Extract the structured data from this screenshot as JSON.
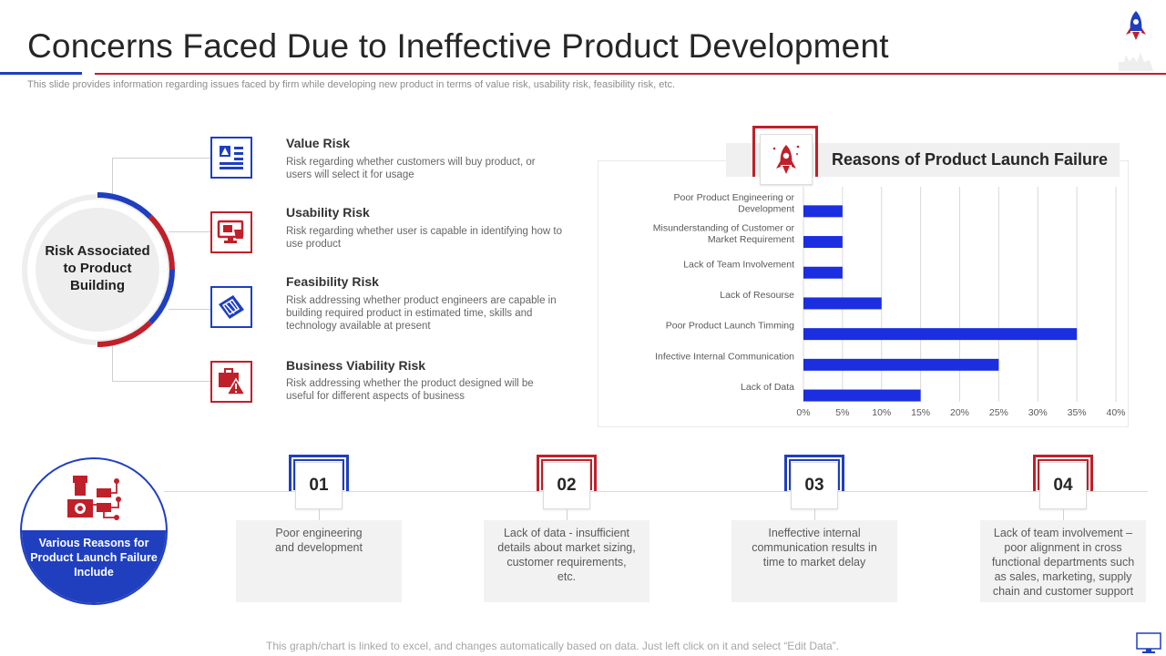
{
  "page": {
    "title": "Concerns Faced Due to Ineffective Product Development",
    "subtitle": "This slide provides information regarding issues faced by firm while developing new product in terms of value risk, usability risk, feasibility risk, etc.",
    "footnote": "This graph/chart is linked to excel, and changes automatically based on data. Just left click on it and select “Edit Data”."
  },
  "colors": {
    "blue": "#1f3fbf",
    "red": "#c0202a",
    "bar": "#1b2ee0"
  },
  "risk_center": {
    "label": "Risk Associated to Product Building"
  },
  "risks": [
    {
      "title": "Value Risk",
      "desc": "Risk regarding whether customers will buy product, or users will select it for usage",
      "icon": "document-chart-icon"
    },
    {
      "title": "Usability Risk",
      "desc": "Risk regarding whether user is capable in identifying how to use product",
      "icon": "computer-hand-icon"
    },
    {
      "title": "Feasibility Risk",
      "desc": "Risk addressing whether product engineers are capable in building required product in estimated time, skills and technology available at present",
      "icon": "blueprint-icon"
    },
    {
      "title": "Business Viability Risk",
      "desc": "Risk addressing whether the product designed will be useful for different aspects of business",
      "icon": "briefcase-warning-icon"
    }
  ],
  "chart_data": {
    "type": "bar",
    "orientation": "horizontal",
    "title": "Reasons of Product Launch Failure",
    "categories": [
      "Poor Product Engineering or Development",
      "Misunderstanding of Customer or Market Requirement",
      "Lack of Team Involvement",
      "Lack of Resourse",
      "Poor Product Launch Timming",
      "Infective Internal Communication",
      "Lack of Data"
    ],
    "values": [
      5,
      5,
      5,
      10,
      35,
      25,
      15
    ],
    "x_ticks": [
      "0%",
      "5%",
      "10%",
      "15%",
      "20%",
      "25%",
      "30%",
      "35%",
      "40%"
    ],
    "xlim": [
      0,
      40
    ],
    "grid": true,
    "legend": "none"
  },
  "reasons_header": {
    "label": "Various Reasons for Product Launch Failure Include"
  },
  "reasons": [
    {
      "num": "01",
      "text": "Poor engineering and development"
    },
    {
      "num": "02",
      "text": "Lack of data - insufficient details about market sizing, customer requirements,  etc."
    },
    {
      "num": "03",
      "text": "Ineffective  internal communication results in time to market delay"
    },
    {
      "num": "04",
      "text": "Lack of team involvement  – poor alignment in cross functional departments such as sales, marketing, supply chain and customer support"
    }
  ]
}
